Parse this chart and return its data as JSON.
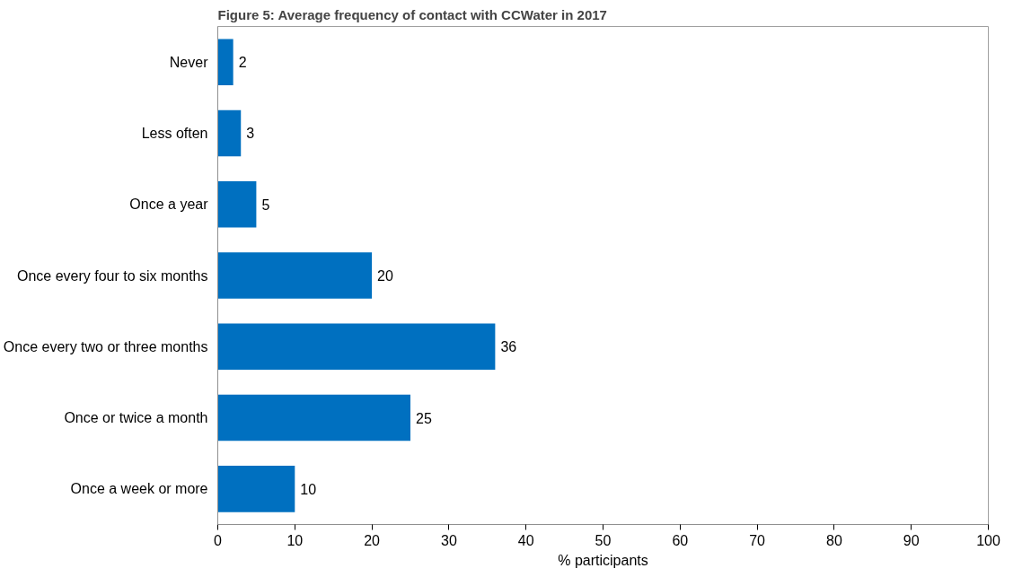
{
  "chart_data": {
    "type": "bar",
    "orientation": "horizontal",
    "title": "Figure 5: Average frequency of contact with CCWater in 2017",
    "xlabel": "% participants",
    "categories": [
      "Never",
      "Less often",
      "Once a year",
      "Once every four to six months",
      "Once every two or three months",
      "Once or twice a month",
      "Once a week or more"
    ],
    "values": [
      2,
      3,
      5,
      20,
      36,
      25,
      10
    ],
    "color": "#0070c0",
    "xlim": [
      0,
      100
    ],
    "xticks": [
      0,
      10,
      20,
      30,
      40,
      50,
      60,
      70,
      80,
      90,
      100
    ],
    "data_labels": true,
    "grid": false
  }
}
